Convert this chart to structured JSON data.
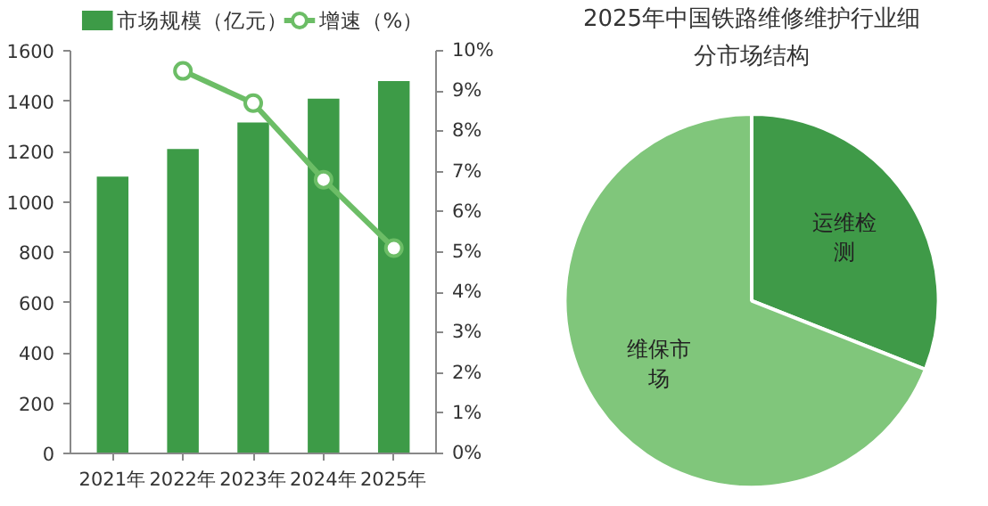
{
  "chart_data": [
    {
      "type": "bar",
      "categories": [
        "2021年",
        "2022年",
        "2023年",
        "2024年",
        "2025年"
      ],
      "series": [
        {
          "name": "市场规模（亿元）",
          "type": "bar",
          "color": "#3d9b47",
          "values": [
            1100,
            1210,
            1315,
            1410,
            1480
          ]
        },
        {
          "name": "增速（%）",
          "type": "line",
          "axis": "y2",
          "color": "#6cbd66",
          "marker": "circle",
          "values": [
            null,
            9.5,
            8.7,
            6.8,
            5.1
          ]
        }
      ],
      "ylim": [
        0,
        1600
      ],
      "yticks": [
        0,
        200,
        400,
        600,
        800,
        1000,
        1200,
        1400,
        1600
      ],
      "y2lim": [
        0,
        10
      ],
      "y2ticks": [
        {
          "value": 0,
          "label": "0%"
        },
        {
          "value": 1,
          "label": "1%"
        },
        {
          "value": 2,
          "label": "2%"
        },
        {
          "value": 3,
          "label": "3%"
        },
        {
          "value": 4,
          "label": "4%"
        },
        {
          "value": 5,
          "label": "5%"
        },
        {
          "value": 6,
          "label": "6%"
        },
        {
          "value": 7,
          "label": "7%"
        },
        {
          "value": 8,
          "label": "8%"
        },
        {
          "value": 9,
          "label": "9%"
        },
        {
          "value": 10,
          "label": "10%"
        }
      ],
      "legend": "top",
      "grid": false
    },
    {
      "type": "pie",
      "title": "2025年中国铁路维修维护行业细分市场结构",
      "categories": [
        "运维检测",
        "维保市场"
      ],
      "values": [
        31,
        69
      ],
      "colors": [
        "#3f9a48",
        "#80c67b"
      ]
    }
  ]
}
